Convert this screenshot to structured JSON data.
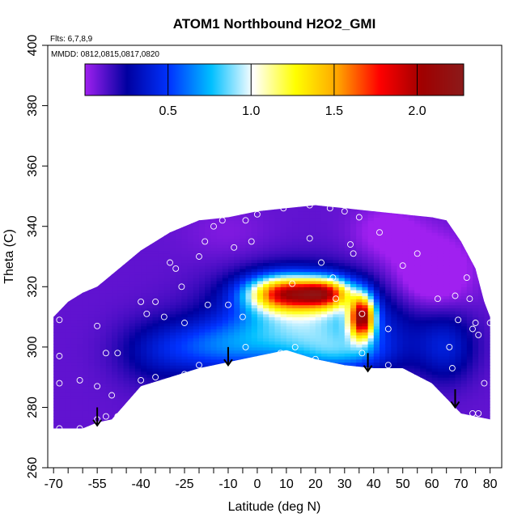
{
  "chart_data": {
    "type": "heatmap",
    "title": "ATOM1 Northbound H2O2_GMI",
    "annotations": {
      "flights": "Flts: 6,7,8,9",
      "dates": "MMDD: 0812,0815,0817,0820"
    },
    "xlabel": "Latitude (deg N)",
    "ylabel": "Theta (C)",
    "xlim": [
      -72,
      84
    ],
    "ylim": [
      260,
      400
    ],
    "x_ticks": [
      -70,
      -55,
      -40,
      -25,
      -10,
      0,
      10,
      20,
      30,
      40,
      50,
      60,
      70,
      80
    ],
    "x_tick_labels": [
      "-70",
      "-55",
      "-40",
      "-25",
      "-10",
      "0",
      "10",
      "20",
      "30",
      "40",
      "50",
      "60",
      "70",
      "80"
    ],
    "x_minor_ticks": [
      -65,
      -60,
      -50,
      -45,
      -35,
      -30,
      -20,
      -15,
      -5,
      5,
      15,
      25,
      35,
      45,
      55,
      65,
      75
    ],
    "y_ticks": [
      260,
      280,
      300,
      320,
      340,
      360,
      380,
      400
    ],
    "y_tick_labels": [
      "260",
      "280",
      "300",
      "320",
      "340",
      "360",
      "380",
      "400"
    ],
    "colorbar": {
      "range": [
        0,
        2.28
      ],
      "ticks": [
        0.5,
        1.0,
        1.5,
        2.0
      ],
      "tick_labels": [
        "0.5",
        "1.0",
        "1.5",
        "2.0"
      ],
      "colors": [
        "#a020f0",
        "#0000a0",
        "#0033ff",
        "#00bfff",
        "#ffffff",
        "#ffff00",
        "#ffa500",
        "#ff0000",
        "#a00000",
        "#8b1a1a"
      ]
    },
    "domain": {
      "top": [
        [
          -70,
          310
        ],
        [
          -65,
          315
        ],
        [
          -60,
          318
        ],
        [
          -55,
          320
        ],
        [
          -50,
          324
        ],
        [
          -45,
          328
        ],
        [
          -40,
          332
        ],
        [
          -35,
          335
        ],
        [
          -30,
          338
        ],
        [
          -25,
          340
        ],
        [
          -20,
          342
        ],
        [
          -10,
          343
        ],
        [
          0,
          345
        ],
        [
          10,
          346
        ],
        [
          20,
          347
        ],
        [
          30,
          346
        ],
        [
          40,
          345
        ],
        [
          50,
          344
        ],
        [
          60,
          343
        ],
        [
          65,
          342
        ],
        [
          70,
          335
        ],
        [
          75,
          326
        ],
        [
          78,
          315
        ],
        [
          80,
          310
        ]
      ],
      "bottom": [
        [
          80,
          276
        ],
        [
          75,
          277
        ],
        [
          70,
          278
        ],
        [
          60,
          288
        ],
        [
          50,
          293
        ],
        [
          40,
          293
        ],
        [
          30,
          294
        ],
        [
          20,
          296
        ],
        [
          10,
          299
        ],
        [
          0,
          297
        ],
        [
          -10,
          295
        ],
        [
          -20,
          293
        ],
        [
          -30,
          290
        ],
        [
          -40,
          287
        ],
        [
          -50,
          276
        ],
        [
          -55,
          275
        ],
        [
          -60,
          273
        ],
        [
          -65,
          273
        ],
        [
          -70,
          273
        ]
      ]
    },
    "field_blobs": [
      {
        "x": 10,
        "y": 318,
        "sx": 9,
        "sy": 4,
        "amp": 1.4
      },
      {
        "x": 24,
        "y": 318,
        "sx": 6,
        "sy": 3.5,
        "amp": 1.1
      },
      {
        "x": 36,
        "y": 310,
        "sx": 3,
        "sy": 5,
        "amp": 1.6
      },
      {
        "x": 15,
        "y": 312,
        "sx": 18,
        "sy": 9,
        "amp": 0.55
      },
      {
        "x": 20,
        "y": 302,
        "sx": 22,
        "sy": 8,
        "amp": 0.4
      },
      {
        "x": 30,
        "y": 298,
        "sx": 10,
        "sy": 4,
        "amp": 0.25
      },
      {
        "x": -15,
        "y": 300,
        "sx": 14,
        "sy": 6,
        "amp": 0.35
      },
      {
        "x": -35,
        "y": 298,
        "sx": 10,
        "sy": 8,
        "amp": 0.15
      },
      {
        "x": 65,
        "y": 300,
        "sx": 7,
        "sy": 8,
        "amp": 0.25
      },
      {
        "x": 60,
        "y": 325,
        "sx": 9,
        "sy": 8,
        "amp": -0.25
      },
      {
        "x": 45,
        "y": 338,
        "sx": 8,
        "sy": 6,
        "amp": -0.15
      },
      {
        "x": -10,
        "y": 338,
        "sx": 10,
        "sy": 6,
        "amp": -0.05
      }
    ],
    "field_base": 0.1,
    "points": [
      [
        -68,
        309
      ],
      [
        -68,
        297
      ],
      [
        -68,
        288
      ],
      [
        -68,
        273
      ],
      [
        -61,
        289
      ],
      [
        -61,
        273
      ],
      [
        -55,
        307
      ],
      [
        -52,
        298
      ],
      [
        -48,
        298
      ],
      [
        -50,
        284
      ],
      [
        -55,
        287
      ],
      [
        -52,
        277
      ],
      [
        -55,
        276
      ],
      [
        -48,
        277
      ],
      [
        -40,
        315
      ],
      [
        -35,
        315
      ],
      [
        -32,
        310
      ],
      [
        -38,
        311
      ],
      [
        -40,
        289
      ],
      [
        -35,
        290
      ],
      [
        -30,
        328
      ],
      [
        -28,
        326
      ],
      [
        -26,
        320
      ],
      [
        -25,
        308
      ],
      [
        -25,
        291
      ],
      [
        -20,
        330
      ],
      [
        -18,
        335
      ],
      [
        -15,
        340
      ],
      [
        -17,
        314
      ],
      [
        -20,
        294
      ],
      [
        -12,
        342
      ],
      [
        -10,
        314
      ],
      [
        -8,
        333
      ],
      [
        -4,
        342
      ],
      [
        -5,
        310
      ],
      [
        -4,
        300
      ],
      [
        0,
        344
      ],
      [
        -2,
        335
      ],
      [
        5,
        347
      ],
      [
        9,
        346
      ],
      [
        8,
        298
      ],
      [
        12,
        321
      ],
      [
        13,
        300
      ],
      [
        18,
        347
      ],
      [
        18,
        336
      ],
      [
        22,
        328
      ],
      [
        20,
        296
      ],
      [
        25,
        346
      ],
      [
        26,
        323
      ],
      [
        27,
        316
      ],
      [
        30,
        345
      ],
      [
        32,
        334
      ],
      [
        33,
        331
      ],
      [
        35,
        343
      ],
      [
        36,
        311
      ],
      [
        36,
        298
      ],
      [
        37,
        290
      ],
      [
        42,
        338
      ],
      [
        45,
        306
      ],
      [
        45,
        294
      ],
      [
        50,
        327
      ],
      [
        55,
        331
      ],
      [
        62,
        316
      ],
      [
        66,
        300
      ],
      [
        67,
        293
      ],
      [
        68,
        317
      ],
      [
        69,
        309
      ],
      [
        71,
        342
      ],
      [
        72,
        323
      ],
      [
        73,
        316
      ],
      [
        74,
        306
      ],
      [
        75,
        308
      ],
      [
        76,
        304
      ],
      [
        74,
        278
      ],
      [
        76,
        278
      ],
      [
        78,
        288
      ],
      [
        80,
        308
      ],
      [
        82,
        306
      ],
      [
        82,
        276
      ]
    ],
    "arrows": [
      {
        "x": -55,
        "y_from": 280,
        "y_to": 274
      },
      {
        "x": -10,
        "y_from": 300,
        "y_to": 294
      },
      {
        "x": 38,
        "y_from": 298,
        "y_to": 292
      },
      {
        "x": 68,
        "y_from": 286,
        "y_to": 280
      }
    ]
  }
}
